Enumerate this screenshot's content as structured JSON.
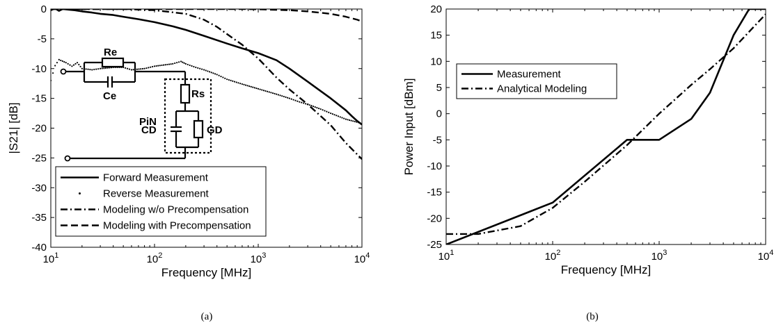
{
  "chart_data": [
    {
      "type": "line",
      "panel_label": "(a)",
      "xlabel": "Frequency [MHz]",
      "ylabel": "|S21| [dB]",
      "xscale": "log",
      "xlim": [
        10,
        10000
      ],
      "ylim": [
        -40,
        0
      ],
      "xticks": [
        10,
        100,
        1000,
        10000
      ],
      "xtick_labels": [
        {
          "base": "10",
          "exp": "1"
        },
        {
          "base": "10",
          "exp": "2"
        },
        {
          "base": "10",
          "exp": "3"
        },
        {
          "base": "10",
          "exp": "4"
        }
      ],
      "yticks": [
        0,
        -5,
        -10,
        -15,
        -20,
        -25,
        -30,
        -35,
        -40
      ],
      "ytick_labels": [
        "0",
        "-5",
        "-10",
        "-15",
        "-20",
        "-25",
        "-30",
        "-35",
        "-40"
      ],
      "legend_position": "bottom-left",
      "series": [
        {
          "name": "Forward Measurement",
          "style": "solid",
          "color": "#000000",
          "points": [
            [
              10,
              -0.2
            ],
            [
              11,
              0.1
            ],
            [
              12,
              -0.3
            ],
            [
              13,
              0
            ],
            [
              15,
              -0.1
            ],
            [
              17,
              -0.2
            ],
            [
              20,
              -0.4
            ],
            [
              25,
              -0.6
            ],
            [
              30,
              -0.8
            ],
            [
              40,
              -1.0
            ],
            [
              50,
              -1.3
            ],
            [
              70,
              -1.7
            ],
            [
              100,
              -2.2
            ],
            [
              150,
              -2.9
            ],
            [
              200,
              -3.5
            ],
            [
              300,
              -4.5
            ],
            [
              500,
              -5.8
            ],
            [
              700,
              -6.6
            ],
            [
              1000,
              -7.4
            ],
            [
              1500,
              -8.6
            ],
            [
              2000,
              -10.0
            ],
            [
              3000,
              -12.2
            ],
            [
              5000,
              -15.0
            ],
            [
              7000,
              -17.0
            ],
            [
              8000,
              -18.0
            ],
            [
              9000,
              -18.8
            ],
            [
              10000,
              -19.4
            ]
          ]
        },
        {
          "name": "Reverse Measurement",
          "style": "dotted",
          "color": "#000000",
          "points": [
            [
              10,
              -12.0
            ],
            [
              11,
              -9.5
            ],
            [
              12,
              -8.5
            ],
            [
              14,
              -9.0
            ],
            [
              16,
              -9.6
            ],
            [
              18,
              -9.0
            ],
            [
              20,
              -10.0
            ],
            [
              25,
              -10.2
            ],
            [
              30,
              -10.0
            ],
            [
              40,
              -9.8
            ],
            [
              50,
              -9.8
            ],
            [
              60,
              -10.2
            ],
            [
              80,
              -10.0
            ],
            [
              100,
              -9.6
            ],
            [
              150,
              -9.2
            ],
            [
              180,
              -8.8
            ],
            [
              200,
              -9.2
            ],
            [
              250,
              -9.8
            ],
            [
              300,
              -10.2
            ],
            [
              400,
              -11.0
            ],
            [
              500,
              -11.8
            ],
            [
              700,
              -12.6
            ],
            [
              1000,
              -13.4
            ],
            [
              1500,
              -14.3
            ],
            [
              2000,
              -15.0
            ],
            [
              2500,
              -15.6
            ],
            [
              3000,
              -16.0
            ],
            [
              4000,
              -16.8
            ],
            [
              5000,
              -17.5
            ],
            [
              7000,
              -18.5
            ],
            [
              10000,
              -19.2
            ]
          ]
        },
        {
          "name": "Modeling w/o Precompensation",
          "style": "dash-dot",
          "color": "#000000",
          "points": [
            [
              10,
              0
            ],
            [
              50,
              0
            ],
            [
              100,
              -0.2
            ],
            [
              200,
              -0.8
            ],
            [
              300,
              -1.8
            ],
            [
              400,
              -3.0
            ],
            [
              500,
              -4.2
            ],
            [
              700,
              -6.0
            ],
            [
              1000,
              -8.3
            ],
            [
              1500,
              -11.5
            ],
            [
              2000,
              -13.5
            ],
            [
              3000,
              -16.0
            ],
            [
              5000,
              -19.5
            ],
            [
              7000,
              -22.5
            ],
            [
              10000,
              -25.2
            ]
          ]
        },
        {
          "name": "Modeling with Precompensation",
          "style": "dashed",
          "color": "#000000",
          "points": [
            [
              10,
              0
            ],
            [
              100,
              0
            ],
            [
              300,
              0
            ],
            [
              700,
              0
            ],
            [
              1000,
              -0.05
            ],
            [
              2000,
              -0.2
            ],
            [
              3000,
              -0.4
            ],
            [
              5000,
              -0.8
            ],
            [
              7000,
              -1.3
            ],
            [
              9000,
              -1.8
            ],
            [
              10000,
              -2.1
            ]
          ]
        }
      ],
      "inset_circuit": {
        "labels": {
          "re": "Re",
          "ce": "Ce",
          "rs": "Rs",
          "pin": "PiN",
          "cd": "CD",
          "gd": "GD"
        }
      }
    },
    {
      "type": "line",
      "panel_label": "(b)",
      "xlabel": "Frequency [MHz]",
      "ylabel": "Power Input [dBm]",
      "xscale": "log",
      "xlim": [
        10,
        10000
      ],
      "ylim": [
        -25,
        20
      ],
      "xticks": [
        10,
        100,
        1000,
        10000
      ],
      "xtick_labels": [
        {
          "base": "10",
          "exp": "1"
        },
        {
          "base": "10",
          "exp": "2"
        },
        {
          "base": "10",
          "exp": "3"
        },
        {
          "base": "10",
          "exp": "4"
        }
      ],
      "yticks": [
        20,
        15,
        10,
        5,
        0,
        -5,
        -10,
        -15,
        -20,
        -25
      ],
      "ytick_labels": [
        "20",
        "15",
        "10",
        "5",
        "0",
        "-5",
        "-10",
        "-15",
        "-20",
        "-25"
      ],
      "legend_position": "top-left",
      "series": [
        {
          "name": "Measurement",
          "style": "solid",
          "color": "#000000",
          "points": [
            [
              10,
              -25
            ],
            [
              100,
              -17
            ],
            [
              500,
              -5
            ],
            [
              1000,
              -5
            ],
            [
              2000,
              -1
            ],
            [
              3000,
              4
            ],
            [
              5000,
              15
            ],
            [
              7000,
              20
            ],
            [
              10000,
              20
            ]
          ]
        },
        {
          "name": "Analytical Modeling",
          "style": "dash-dot",
          "color": "#000000",
          "points": [
            [
              10,
              -23
            ],
            [
              20,
              -23
            ],
            [
              50,
              -21.5
            ],
            [
              100,
              -18
            ],
            [
              200,
              -13
            ],
            [
              500,
              -6
            ],
            [
              1000,
              0
            ],
            [
              2000,
              5.5
            ],
            [
              3000,
              8.5
            ],
            [
              5000,
              12.5
            ],
            [
              10000,
              19
            ]
          ]
        }
      ]
    }
  ]
}
